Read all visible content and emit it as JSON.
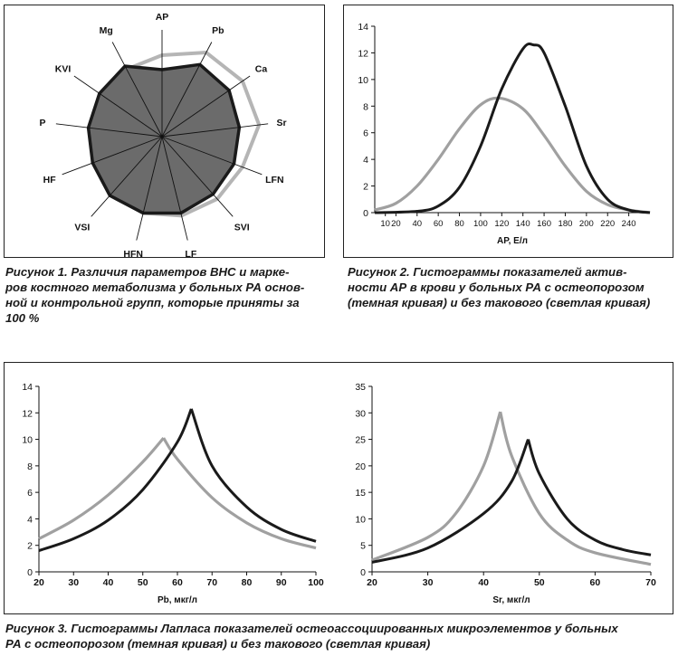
{
  "figure1": {
    "caption": "Рисунок 1. Различия параметров ВНС и маркеров костного метаболизма у больных РА основной и контрольной групп, которые приняты за 100 %",
    "caption_lines": [
      "Рисунок 1. Различия параметров ВНС и марке-",
      "ров костного метаболизма у больных РА основ-",
      "ной и контрольной групп, которые приняты за",
      "100 %"
    ]
  },
  "figure2": {
    "caption": "Рисунок 2. Гистограммы показателей активности АР в крови у больных РА с остеопорозом (темная кривая) и без такового (светлая кривая)",
    "caption_lines": [
      "Рисунок 2. Гистограммы показателей актив-",
      "ности АР в крови у больных РА с остеопорозом",
      "(темная кривая) и без такового (светлая кривая)"
    ]
  },
  "figure3": {
    "caption": "Рисунок 3. Гистограммы Лапласа показателей остеоассоциированных микроэлементов у больных РА с остеопорозом (темная кривая) и без такового (светлая кривая)",
    "caption_lines": [
      "Рисунок 3. Гистограммы Лапласа показателей остеоассоциированных микроэлементов у больных",
      "РА с остеопорозом (темная кривая) и без такового (светлая кривая)"
    ]
  },
  "colors": {
    "dark": "#1a1a1a",
    "light": "#a0a0a0",
    "fill": "#6b6b6b"
  },
  "chart_data": [
    {
      "type": "radar",
      "axes": [
        "AP",
        "Pb",
        "Ca",
        "Sr",
        "LFN",
        "SVI",
        "LF",
        "HFN",
        "VSI",
        "HF",
        "P",
        "KVI",
        "Mg"
      ],
      "series": [
        {
          "values": [
            0.74,
            0.9,
            0.9,
            0.86,
            0.85,
            0.85,
            0.87,
            0.87,
            0.87,
            0.82,
            0.82,
            0.84,
            0.88
          ]
        },
        {
          "values": [
            0.9,
            1.05,
            1.08,
            1.08,
            0.95,
            0.92,
            0.9,
            0.87,
            0.86,
            0.78,
            0.78,
            0.81,
            0.84
          ]
        }
      ]
    },
    {
      "type": "line",
      "xlabel": "AP, Е/л",
      "ylim": [
        0,
        14
      ],
      "xlim": [
        0,
        260
      ],
      "xticks": [
        "10",
        "20",
        "40",
        "60",
        "80",
        "100",
        "120",
        "140",
        "160",
        "180",
        "200",
        "220",
        "240"
      ],
      "yticks": [
        "0",
        "2",
        "4",
        "6",
        "8",
        "10",
        "12",
        "14"
      ],
      "series": [
        {
          "values": [
            [
              0,
              0.0
            ],
            [
              40,
              0.1
            ],
            [
              60,
              0.5
            ],
            [
              80,
              1.9
            ],
            [
              100,
              5.0
            ],
            [
              120,
              9.3
            ],
            [
              140,
              12.3
            ],
            [
              150,
              12.6
            ],
            [
              160,
              12.0
            ],
            [
              180,
              8.0
            ],
            [
              200,
              3.5
            ],
            [
              220,
              1.0
            ],
            [
              240,
              0.2
            ],
            [
              260,
              0.0
            ]
          ]
        },
        {
          "values": [
            [
              0,
              0.2
            ],
            [
              20,
              0.7
            ],
            [
              40,
              2.0
            ],
            [
              60,
              4.0
            ],
            [
              80,
              6.3
            ],
            [
              100,
              8.1
            ],
            [
              118,
              8.6
            ],
            [
              140,
              7.8
            ],
            [
              160,
              5.8
            ],
            [
              180,
              3.5
            ],
            [
              200,
              1.6
            ],
            [
              220,
              0.6
            ],
            [
              240,
              0.2
            ],
            [
              260,
              0.0
            ]
          ]
        }
      ]
    },
    {
      "type": "line",
      "xlabel": "Pb, мкг/л",
      "ylim": [
        0,
        14
      ],
      "xlim": [
        20,
        100
      ],
      "xticks": [
        "20",
        "30",
        "40",
        "50",
        "60",
        "70",
        "80",
        "90",
        "100"
      ],
      "yticks": [
        "0",
        "2",
        "4",
        "6",
        "8",
        "10",
        "12",
        "14"
      ],
      "series": [
        {
          "values": [
            [
              20,
              1.6
            ],
            [
              30,
              2.5
            ],
            [
              40,
              3.9
            ],
            [
              50,
              6.2
            ],
            [
              60,
              9.8
            ],
            [
              64,
              12.3
            ],
            [
              70,
              8.0
            ],
            [
              80,
              4.9
            ],
            [
              90,
              3.2
            ],
            [
              100,
              2.3
            ]
          ]
        },
        {
          "values": [
            [
              20,
              2.5
            ],
            [
              30,
              3.9
            ],
            [
              40,
              5.8
            ],
            [
              50,
              8.3
            ],
            [
              56,
              10.1
            ],
            [
              60,
              8.5
            ],
            [
              70,
              5.6
            ],
            [
              80,
              3.7
            ],
            [
              90,
              2.5
            ],
            [
              100,
              1.8
            ]
          ]
        }
      ]
    },
    {
      "type": "line",
      "xlabel": "Sr, мкг/л",
      "ylim": [
        0,
        35
      ],
      "xlim": [
        20,
        70
      ],
      "xticks": [
        "20",
        "30",
        "40",
        "50",
        "60",
        "70"
      ],
      "yticks": [
        "0",
        "5",
        "10",
        "15",
        "20",
        "25",
        "30",
        "35"
      ],
      "series": [
        {
          "values": [
            [
              20,
              1.8
            ],
            [
              30,
              4.5
            ],
            [
              40,
              11.0
            ],
            [
              45,
              17.0
            ],
            [
              48,
              25.0
            ],
            [
              50,
              18.5
            ],
            [
              55,
              10.0
            ],
            [
              60,
              6.0
            ],
            [
              65,
              4.2
            ],
            [
              70,
              3.2
            ]
          ]
        },
        {
          "values": [
            [
              20,
              2.2
            ],
            [
              30,
              6.5
            ],
            [
              35,
              11.0
            ],
            [
              40,
              20.0
            ],
            [
              43,
              30.2
            ],
            [
              45,
              22.0
            ],
            [
              50,
              11.0
            ],
            [
              55,
              6.0
            ],
            [
              60,
              3.6
            ],
            [
              70,
              1.4
            ]
          ]
        }
      ]
    }
  ]
}
